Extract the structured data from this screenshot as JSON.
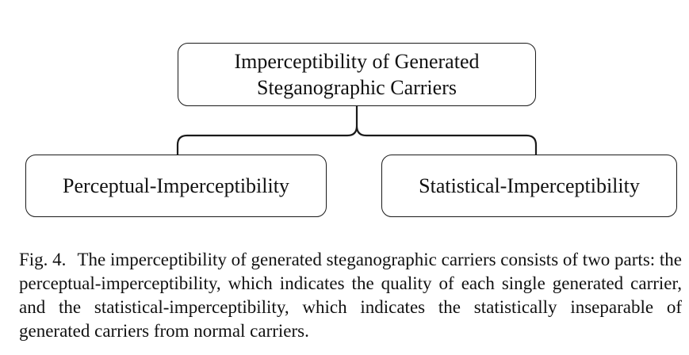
{
  "diagram": {
    "root": {
      "line1": "Imperceptibility of Generated",
      "line2": "Steganographic Carriers"
    },
    "left": {
      "label": "Perceptual-Imperceptibility"
    },
    "right": {
      "label": "Statistical-Imperceptibility"
    }
  },
  "caption": {
    "label": "Fig. 4.",
    "text": "The imperceptibility of generated steganographic carriers consists of two parts: the perceptual-imperceptibility, which indicates the quality of each single generated carrier, and the statistical-imperceptibility, which indicates the statistically inseparable of generated carriers from normal carriers."
  }
}
